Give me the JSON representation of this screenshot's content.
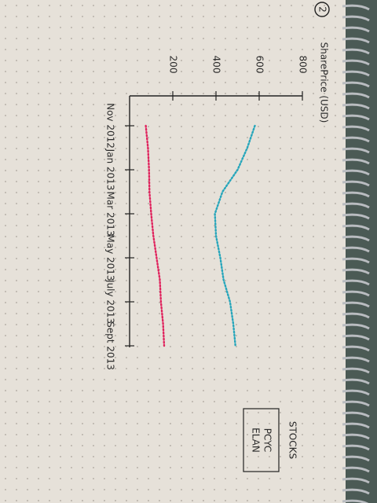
{
  "chart_data": {
    "type": "line",
    "annotation": "2",
    "y_label": "SharePrice (USD)",
    "legend_title": "STOCKS",
    "categories": [
      "Nov 2012",
      null,
      "Jan 2013",
      null,
      "Mar 2013",
      null,
      "May 2013",
      null,
      "July 2013",
      null,
      "Sept 2013"
    ],
    "series": [
      {
        "name": "PCYC",
        "color": "#27a6bb",
        "values": [
          580,
          545,
          500,
          430,
          395,
          400,
          420,
          435,
          465,
          480,
          490
        ]
      },
      {
        "name": "ELAN",
        "color": "#e0245e",
        "values": [
          75,
          85,
          90,
          92,
          100,
          110,
          125,
          140,
          145,
          155,
          160
        ]
      }
    ],
    "ylim": [
      0,
      800
    ],
    "yticks": [
      200,
      400,
      600,
      800
    ],
    "grid": false
  }
}
